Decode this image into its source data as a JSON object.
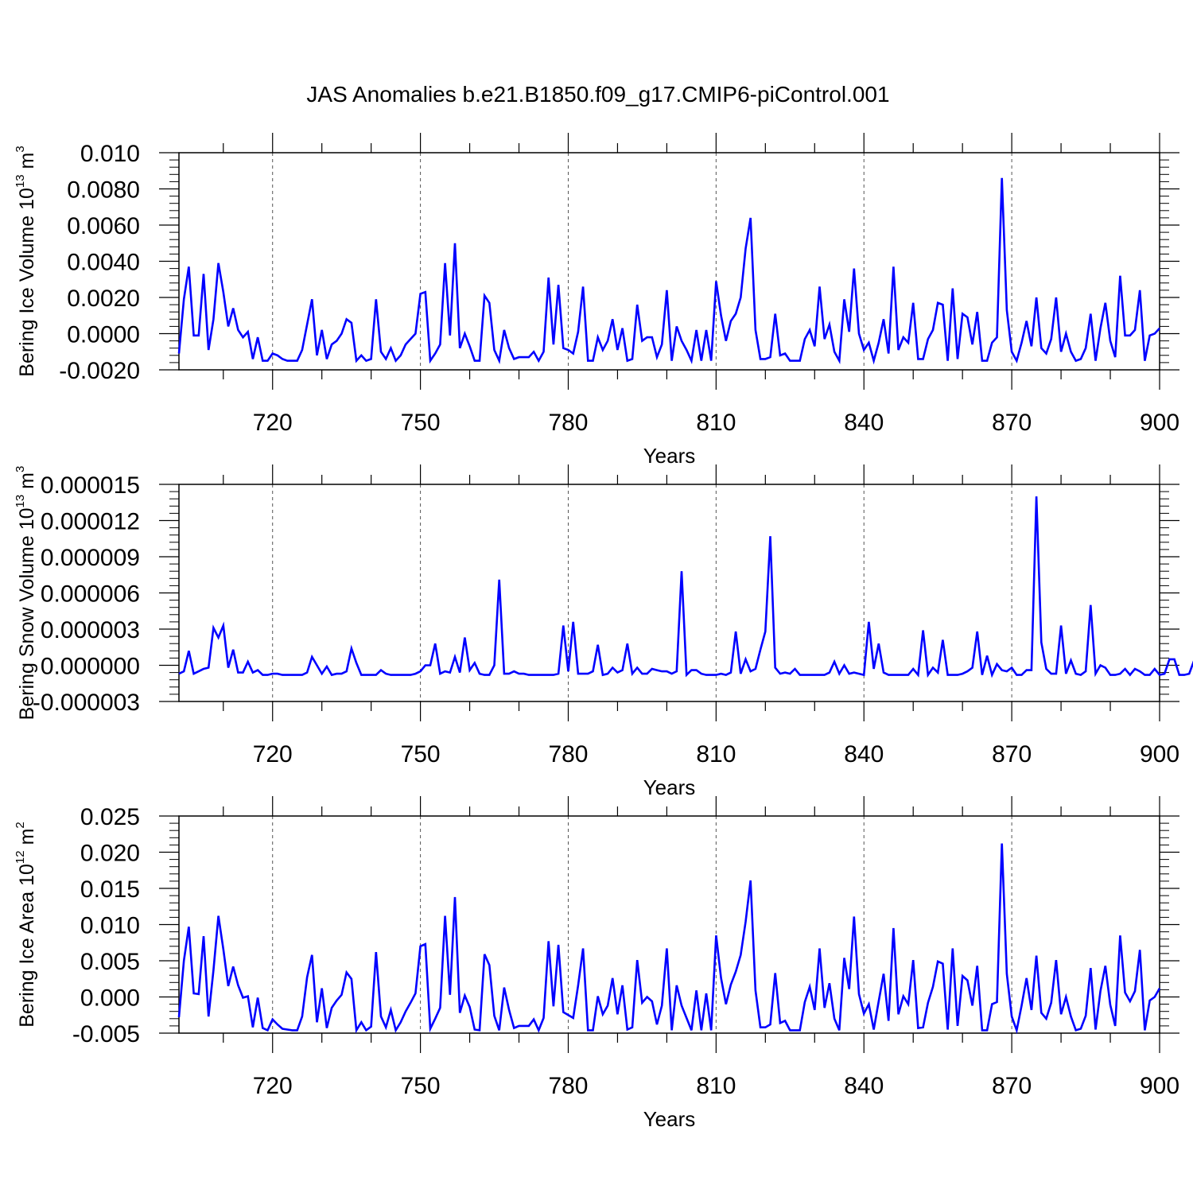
{
  "title": "JAS Anomalies b.e21.B1850.f09_g17.CMIP6-piControl.001",
  "line_color": "#0000ff",
  "chart_data": [
    {
      "type": "line",
      "title": "JAS Anomalies b.e21.B1850.f09_g17.CMIP6-piControl.001",
      "xlabel": "Years",
      "ylabel": {
        "text": "Bering Ice Volume 10",
        "sup": "13",
        "unit": " m",
        "unit_sup": "3"
      },
      "xlim": [
        701,
        900
      ],
      "ylim": [
        -0.002,
        0.01
      ],
      "xticks": [
        720,
        750,
        780,
        810,
        840,
        870,
        900
      ],
      "yticks": [
        "-0.0020",
        "0.0000",
        "0.0020",
        "0.0040",
        "0.0060",
        "0.0080",
        "0.010"
      ],
      "grid": "vertical dashed at major x ticks",
      "x_start": 701,
      "values": [
        -0.0011,
        0.0019,
        0.0037,
        -0.0001,
        -0.0001,
        0.0033,
        -0.0009,
        0.0008,
        0.0039,
        0.0023,
        0.0004,
        0.0014,
        0.0002,
        -0.0002,
        0.0001,
        -0.0014,
        -0.0002,
        -0.0015,
        -0.0015,
        -0.0011,
        -0.0012,
        -0.0014,
        -0.0015,
        -0.0015,
        -0.0015,
        -0.0009,
        0.0005,
        0.0019,
        -0.0012,
        0.0002,
        -0.0014,
        -0.0006,
        -0.0004,
        0.0,
        0.0008,
        0.0006,
        -0.0015,
        -0.0012,
        -0.0015,
        -0.0014,
        0.0019,
        -0.001,
        -0.0014,
        -0.0008,
        -0.0015,
        -0.0012,
        -0.0006,
        -0.0003,
        0.0,
        0.0022,
        0.0023,
        -0.0015,
        -0.0011,
        -0.0006,
        0.0039,
        -0.0001,
        0.005,
        -0.0008,
        0.0,
        -0.0007,
        -0.0015,
        -0.0015,
        0.0021,
        0.0017,
        -0.0009,
        -0.0015,
        0.0002,
        -0.0008,
        -0.0014,
        -0.0013,
        -0.0013,
        -0.0013,
        -0.001,
        -0.0015,
        -0.001,
        0.0031,
        -0.0006,
        0.0027,
        -0.0008,
        -0.0009,
        -0.0011,
        0.0001,
        0.0026,
        -0.0015,
        -0.0015,
        -0.0002,
        -0.0009,
        -0.0004,
        0.0008,
        -0.0009,
        0.0003,
        -0.0015,
        -0.0014,
        0.0016,
        -0.0004,
        -0.0002,
        -0.0002,
        -0.0013,
        -0.0006,
        0.0024,
        -0.0015,
        0.0004,
        -0.0004,
        -0.0009,
        -0.0015,
        0.0002,
        -0.0015,
        0.0002,
        -0.0015,
        0.0029,
        0.001,
        -0.0004,
        0.0007,
        0.0011,
        0.002,
        0.0047,
        0.0064,
        0.0002,
        -0.0014,
        -0.0014,
        -0.0013,
        0.0011,
        -0.0012,
        -0.0011,
        -0.0015,
        -0.0015,
        -0.0015,
        -0.0003,
        0.0002,
        -0.0007,
        0.0026,
        -0.0003,
        0.0005,
        -0.001,
        -0.0015,
        0.0019,
        0.0001,
        0.0036,
        0.0,
        -0.0009,
        -0.0005,
        -0.0015,
        -0.0005,
        0.0008,
        -0.0011,
        0.0037,
        -0.0009,
        -0.0002,
        -0.0005,
        0.0017,
        -0.0014,
        -0.0014,
        -0.0003,
        0.0002,
        0.0017,
        0.0016,
        -0.0015,
        0.0025,
        -0.0014,
        0.0011,
        0.0009,
        -0.0006,
        0.0012,
        -0.0015,
        -0.0015,
        -0.0005,
        -0.0002,
        0.0086,
        0.0013,
        -0.001,
        -0.0015,
        -0.0005,
        0.0007,
        -0.0007,
        0.002,
        -0.0008,
        -0.0011,
        -0.0003,
        0.002,
        -0.001,
        0.0,
        -0.001,
        -0.0015,
        -0.0014,
        -0.0008,
        0.0011,
        -0.0015,
        0.0003,
        0.0017,
        -0.0004,
        -0.0013,
        0.0032,
        -0.0001,
        -0.0001,
        0.0002,
        0.0024,
        -0.0015,
        -0.0001,
        0.0,
        0.0003
      ]
    },
    {
      "type": "line",
      "xlabel": "Years",
      "ylabel": {
        "text": "Bering Snow Volume 10",
        "sup": "13",
        "unit": " m",
        "unit_sup": "3"
      },
      "xlim": [
        701,
        900
      ],
      "ylim": [
        -3e-06,
        1.5e-05
      ],
      "xticks": [
        720,
        750,
        780,
        810,
        840,
        870,
        900
      ],
      "yticks": [
        "-0.000003",
        "0.000000",
        "0.000003",
        "0.000006",
        "0.000009",
        "0.000012",
        "0.000015"
      ],
      "grid": "vertical dashed at major x ticks",
      "x_start": 701,
      "values": [
        -7e-07,
        -5e-07,
        1.2e-06,
        -7e-07,
        -5e-07,
        -3e-07,
        -2e-07,
        3.1e-06,
        2.3e-06,
        3.3e-06,
        -2e-07,
        1.3e-06,
        -6e-07,
        -6e-07,
        3e-07,
        -6e-07,
        -4e-07,
        -8e-07,
        -8e-07,
        -7e-07,
        -7e-07,
        -8e-07,
        -8e-07,
        -8e-07,
        -8e-07,
        -8e-07,
        -6e-07,
        7e-07,
        0,
        -7e-07,
        -1e-07,
        -8e-07,
        -7e-07,
        -7e-07,
        -5e-07,
        1.4e-06,
        2e-07,
        -8e-07,
        -8e-07,
        -8e-07,
        -8e-07,
        -4e-07,
        -7e-07,
        -8e-07,
        -8e-07,
        -8e-07,
        -8e-07,
        -8e-07,
        -7e-07,
        -5e-07,
        0,
        0,
        1.8e-06,
        -7e-07,
        -5e-07,
        -6e-07,
        7e-07,
        -6e-07,
        2.3e-06,
        -4e-07,
        2e-07,
        -7e-07,
        -8e-07,
        -8e-07,
        0,
        7.1e-06,
        -7e-07,
        -7e-07,
        -5e-07,
        -7e-07,
        -7e-07,
        -8e-07,
        -8e-07,
        -8e-07,
        -8e-07,
        -8e-07,
        -8e-07,
        -7e-07,
        3.3e-06,
        -5e-07,
        3.6e-06,
        -7e-07,
        -7e-07,
        -7e-07,
        -5e-07,
        1.7e-06,
        -8e-07,
        -7e-07,
        -2e-07,
        -6e-07,
        -4e-07,
        1.8e-06,
        -7e-07,
        -2e-07,
        -7e-07,
        -7e-07,
        -3e-07,
        -4e-07,
        -5e-07,
        -5e-07,
        -7e-07,
        -5e-07,
        7.8e-06,
        -8e-07,
        -4e-07,
        -4e-07,
        -7e-07,
        -8e-07,
        -8e-07,
        -8e-07,
        -7e-07,
        -8e-07,
        -6e-07,
        2.8e-06,
        -7e-07,
        5e-07,
        -5e-07,
        -3e-07,
        1.3e-06,
        2.8e-06,
        1.07e-05,
        -2e-07,
        -7e-07,
        -6e-07,
        -7e-07,
        -3e-07,
        -8e-07,
        -8e-07,
        -8e-07,
        -8e-07,
        -8e-07,
        -8e-07,
        -6e-07,
        3e-07,
        -7e-07,
        0,
        -7e-07,
        -6e-07,
        -7e-07,
        -8e-07,
        3.6e-06,
        -3e-07,
        1.8e-06,
        -6e-07,
        -8e-07,
        -8e-07,
        -8e-07,
        -8e-07,
        -8e-07,
        -3e-07,
        -8e-07,
        2.9e-06,
        -8e-07,
        -2e-07,
        -6e-07,
        2.1e-06,
        -8e-07,
        -8e-07,
        -8e-07,
        -7e-07,
        -5e-07,
        -2e-07,
        2.8e-06,
        -8e-07,
        8e-07,
        -8e-07,
        1e-07,
        -4e-07,
        -5e-07,
        -2e-07,
        -8e-07,
        -8e-07,
        -4e-07,
        -4e-07,
        1.4e-05,
        1.9e-06,
        -3e-07,
        -7e-07,
        -7e-07,
        3.3e-06,
        -7e-07,
        4e-07,
        -7e-07,
        -8e-07,
        -5e-07,
        5e-06,
        -7e-07,
        0,
        -2e-07,
        -8e-07,
        -8e-07,
        -7e-07,
        -3e-07,
        -8e-07,
        -3e-07,
        -5e-07,
        -8e-07,
        -8e-07,
        -3e-07,
        -8e-07,
        -7e-07,
        5e-07,
        5e-07,
        -8e-07,
        -8e-07,
        -7e-07,
        4e-07
      ]
    },
    {
      "type": "line",
      "xlabel": "Years",
      "ylabel": {
        "text": "Bering Ice Area 10",
        "sup": "12",
        "unit": " m",
        "unit_sup": "2"
      },
      "xlim": [
        701,
        900
      ],
      "ylim": [
        -0.005,
        0.025
      ],
      "xticks": [
        720,
        750,
        780,
        810,
        840,
        870,
        900
      ],
      "yticks": [
        "-0.005",
        "0.000",
        "0.005",
        "0.010",
        "0.015",
        "0.020",
        "0.025"
      ],
      "grid": "vertical dashed at major x ticks",
      "x_start": 701,
      "values": [
        -0.0028,
        0.005,
        0.0097,
        0.0005,
        0.0004,
        0.0084,
        -0.0027,
        0.0037,
        0.0112,
        0.0066,
        0.0015,
        0.0042,
        0.0016,
        -0.0001,
        0.0001,
        -0.0042,
        -0.0001,
        -0.0043,
        -0.0046,
        -0.0031,
        -0.0038,
        -0.0044,
        -0.0045,
        -0.0046,
        -0.0046,
        -0.0027,
        0.0027,
        0.0058,
        -0.0035,
        0.0012,
        -0.0043,
        -0.0015,
        -0.0005,
        0.0003,
        0.0034,
        0.0025,
        -0.0046,
        -0.0035,
        -0.0046,
        -0.0041,
        0.0062,
        -0.0027,
        -0.0042,
        -0.0018,
        -0.0046,
        -0.0035,
        -0.002,
        -0.0008,
        0.0005,
        0.007,
        0.0073,
        -0.0044,
        -0.003,
        -0.0015,
        0.0112,
        0.0003,
        0.0138,
        -0.0022,
        0.0002,
        -0.0014,
        -0.0045,
        -0.0046,
        0.0059,
        0.0044,
        -0.0026,
        -0.0046,
        0.0013,
        -0.0018,
        -0.0043,
        -0.004,
        -0.004,
        -0.004,
        -0.0031,
        -0.0046,
        -0.0029,
        0.0077,
        -0.0013,
        0.0072,
        -0.0021,
        -0.0025,
        -0.0029,
        0.0016,
        0.0067,
        -0.0046,
        -0.0046,
        0.0001,
        -0.0024,
        -0.0012,
        0.0026,
        -0.0024,
        0.0016,
        -0.0045,
        -0.0042,
        0.0051,
        -0.0008,
        0.0,
        -0.0006,
        -0.0038,
        -0.0012,
        0.0067,
        -0.0046,
        0.0016,
        -0.0012,
        -0.0029,
        -0.0046,
        0.0009,
        -0.0046,
        0.0005,
        -0.0046,
        0.0085,
        0.0026,
        -0.001,
        0.0017,
        0.0035,
        0.0058,
        0.0104,
        0.0161,
        0.0009,
        -0.0042,
        -0.0042,
        -0.0038,
        0.0033,
        -0.0036,
        -0.0033,
        -0.0046,
        -0.0046,
        -0.0046,
        -0.0007,
        0.0014,
        -0.0018,
        0.0067,
        -0.0015,
        0.0019,
        -0.003,
        -0.0046,
        0.0054,
        0.0011,
        0.0111,
        0.0004,
        -0.0023,
        -0.001,
        -0.0045,
        -0.0006,
        0.0032,
        -0.0033,
        0.0095,
        -0.0024,
        0.0001,
        -0.001,
        0.0051,
        -0.0043,
        -0.0042,
        -0.0008,
        0.0014,
        0.0049,
        0.0046,
        -0.0045,
        0.0067,
        -0.004,
        0.0029,
        0.0023,
        -0.0012,
        0.0043,
        -0.0046,
        -0.0046,
        -0.001,
        -0.0007,
        0.0212,
        0.0032,
        -0.0027,
        -0.0046,
        -0.0012,
        0.0026,
        -0.0018,
        0.0057,
        -0.0022,
        -0.003,
        -0.0008,
        0.0051,
        -0.0024,
        0.0,
        -0.0027,
        -0.0046,
        -0.0044,
        -0.0026,
        0.004,
        -0.0045,
        0.0008,
        0.0043,
        -0.0011,
        -0.004,
        0.0085,
        0.0006,
        -0.0006,
        0.0008,
        0.0065,
        -0.0046,
        -0.0005,
        0.0,
        0.0012
      ]
    }
  ]
}
